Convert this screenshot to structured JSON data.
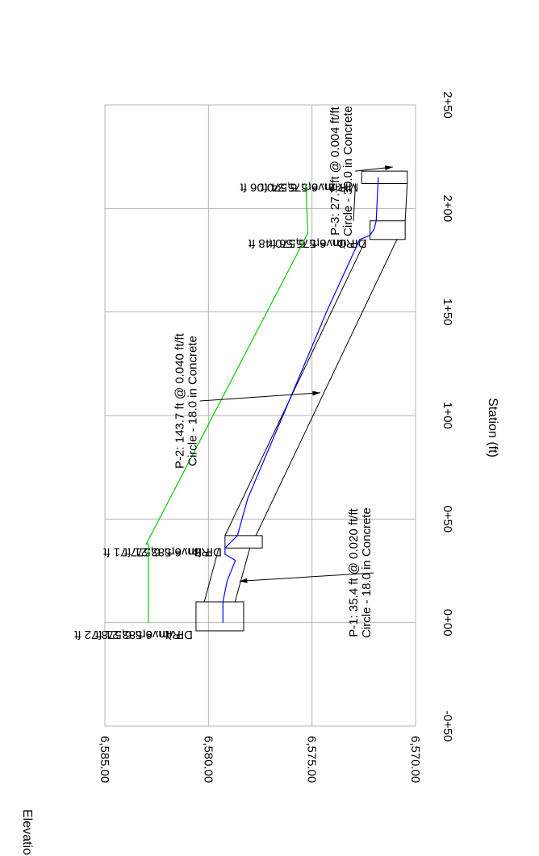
{
  "chart_data": {
    "type": "line",
    "title": "",
    "xlabel": "Station (ft)",
    "ylabel": "Elevation (ft)",
    "xlim": [
      -50,
      250
    ],
    "ylim": [
      6570,
      6585
    ],
    "x_ticks": [
      -50,
      0,
      50,
      100,
      150,
      200,
      250
    ],
    "x_tick_labels": [
      "-0+50",
      "0+00",
      "0+50",
      "1+00",
      "1+50",
      "2+00",
      "2+50"
    ],
    "y_ticks": [
      6570,
      6575,
      6580,
      6585
    ],
    "y_tick_labels": [
      "6,570.00",
      "6,575.00",
      "6,580.00",
      "6,585.00"
    ],
    "grid": true,
    "orientation": "rotated 90° counter-clockwise",
    "colors": {
      "hgl": "#0000ff",
      "egl": "#00cc00",
      "structure": "#000000",
      "grid": "#b4b4b4"
    },
    "structures": [
      {
        "id": "dp-a",
        "x_left": -4,
        "x_right": 10,
        "bottom": 6578.3,
        "top": 6580.6,
        "name": "DP A",
        "rim": "Rim: 6,583.21 ft",
        "invert": "Invert: 6,578.72 ft"
      },
      {
        "id": "dp-b",
        "x_left": 36,
        "x_right": 42,
        "bottom": 6577.4,
        "top": 6579.2,
        "name": "DP B",
        "rim": "Rim: 6,583.21 ft",
        "invert": "Invert: 6,577.71 ft"
      },
      {
        "id": "dp-c",
        "x_left": 185,
        "x_right": 194,
        "bottom": 6570.5,
        "top": 6572.2,
        "name": "DP C",
        "rim": "Rim: 6,575.56 ft",
        "invert": "Invert: 6,570.48 ft"
      },
      {
        "id": "mh-2",
        "x_left": 212,
        "x_right": 218,
        "bottom": 6570.4,
        "top": 6572.6,
        "name": "MH-2",
        "rim": "Rim: 6,575.34 ft",
        "invert": "Invert: 6,570.06 ft"
      }
    ],
    "pipes": [
      {
        "id": "p-1",
        "x_start": 10,
        "x_end": 36,
        "invert_start": 6578.72,
        "invert_end": 6578.0,
        "crown_start": 6580.2,
        "crown_end": 6579.5,
        "label_line1": "P-1: 35.4 ft @ 0.020 ft/ft",
        "label_line2": "Circle - 18.0 in Concrete",
        "label_x": 24,
        "label_y": 6572.8,
        "arrow_x": 20,
        "arrow_y": 6578.5
      },
      {
        "id": "p-2",
        "x_start": 42,
        "x_end": 185,
        "invert_start": 6577.71,
        "invert_end": 6570.9,
        "crown_start": 6579.2,
        "crown_end": 6572.4,
        "label_line1": "P-2: 143.7 ft @ 0.040 ft/ft",
        "label_line2": "Circle - 18.0 in Concrete",
        "label_x": 107,
        "label_y": 6581.2,
        "arrow_x": 111,
        "arrow_y": 6574.6
      },
      {
        "id": "p-3",
        "x_start": 194,
        "x_end": 212,
        "invert_start": 6570.5,
        "invert_end": 6570.4,
        "crown_start": 6573.0,
        "crown_end": 6572.9,
        "label_line1": "P-3: 27.7 ft @ 0.004 ft/ft",
        "label_line2": "Circle - 30.0 in Concrete",
        "label_x": 218,
        "label_y": 6573.7,
        "arrow_x": 220,
        "arrow_y": 6571.1
      }
    ],
    "series": [
      {
        "id": "hgl",
        "x": [
          0,
          8,
          10,
          20,
          30,
          33,
          36,
          42,
          60,
          100,
          150,
          185,
          187,
          190,
          194,
          215
        ],
        "y": [
          6579.3,
          6579.3,
          6579.3,
          6579.1,
          6578.7,
          6579.2,
          6579.2,
          6578.6,
          6578.1,
          6576.4,
          6574.3,
          6572.7,
          6572.2,
          6572.0,
          6571.9,
          6571.8
        ]
      },
      {
        "id": "egl",
        "x": [
          0,
          38,
          38,
          188,
          212
        ],
        "y": [
          6582.9,
          6582.9,
          6583.0,
          6575.2,
          6575.3
        ]
      }
    ]
  }
}
